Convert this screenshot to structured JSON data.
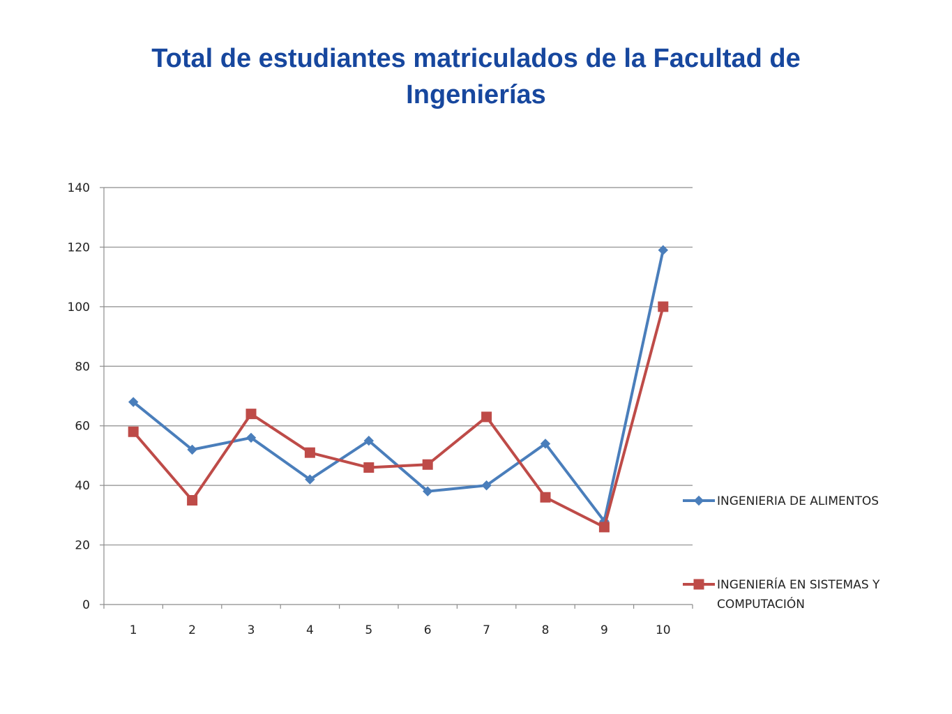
{
  "title": {
    "line1": "Total de estudiantes matriculados de la Facultad de",
    "line2": "Ingenierías"
  },
  "chart_data": {
    "type": "line",
    "title": "Total de estudiantes matriculados de la Facultad de Ingenierías",
    "categories": [
      "1",
      "2",
      "3",
      "4",
      "5",
      "6",
      "7",
      "8",
      "9",
      "10"
    ],
    "ylim": [
      0,
      140
    ],
    "yticks": [
      "0",
      "20",
      "40",
      "60",
      "80",
      "100",
      "120",
      "140"
    ],
    "grid": true,
    "legend_position": "right",
    "series": [
      {
        "name": "INGENIERIA DE ALIMENTOS",
        "legend_lines": [
          "INGENIERIA DE ALIMENTOS"
        ],
        "color": "#4A7EBB",
        "marker": "diamond",
        "values": [
          68,
          52,
          56,
          42,
          55,
          38,
          40,
          54,
          28,
          119
        ]
      },
      {
        "name": "INGENIERÍA EN SISTEMAS Y COMPUTACIÓN",
        "legend_lines": [
          "INGENIERÍA EN SISTEMAS Y",
          "COMPUTACIÓN"
        ],
        "color": "#BE4B48",
        "marker": "square",
        "values": [
          58,
          35,
          64,
          51,
          46,
          47,
          63,
          36,
          26,
          100
        ]
      }
    ]
  }
}
